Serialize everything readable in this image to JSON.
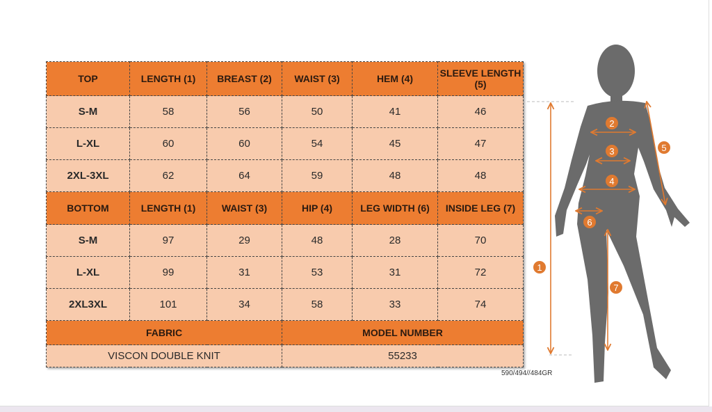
{
  "top": {
    "headers": [
      "TOP",
      "LENGTH (1)",
      "BREAST (2)",
      "WAIST (3)",
      "HEM (4)",
      "SLEEVE LENGTH (5)"
    ],
    "rows": [
      [
        "S-M",
        "58",
        "56",
        "50",
        "41",
        "46"
      ],
      [
        "L-XL",
        "60",
        "60",
        "54",
        "45",
        "47"
      ],
      [
        "2XL-3XL",
        "62",
        "64",
        "59",
        "48",
        "48"
      ]
    ]
  },
  "bottom": {
    "headers": [
      "BOTTOM",
      "LENGTH (1)",
      "WAIST (3)",
      "HIP (4)",
      "LEG WIDTH (6)",
      "INSIDE LEG (7)"
    ],
    "rows": [
      [
        "S-M",
        "97",
        "29",
        "48",
        "28",
        "70"
      ],
      [
        "L-XL",
        "99",
        "31",
        "53",
        "31",
        "72"
      ],
      [
        "2XL3XL",
        "101",
        "34",
        "58",
        "33",
        "74"
      ]
    ]
  },
  "fabric": {
    "label": "FABRIC",
    "value": "VISCON DOUBLE KNIT"
  },
  "model": {
    "label": "MODEL NUMBER",
    "value": "55233"
  },
  "code": "590/494//484GR",
  "figure": {
    "markers": [
      "1",
      "2",
      "3",
      "4",
      "5",
      "6",
      "7"
    ]
  },
  "colors": {
    "header": "#ed7d31",
    "cell": "#f8cbad",
    "silhouette": "#6b6b6b",
    "arrow": "#e07a30"
  }
}
